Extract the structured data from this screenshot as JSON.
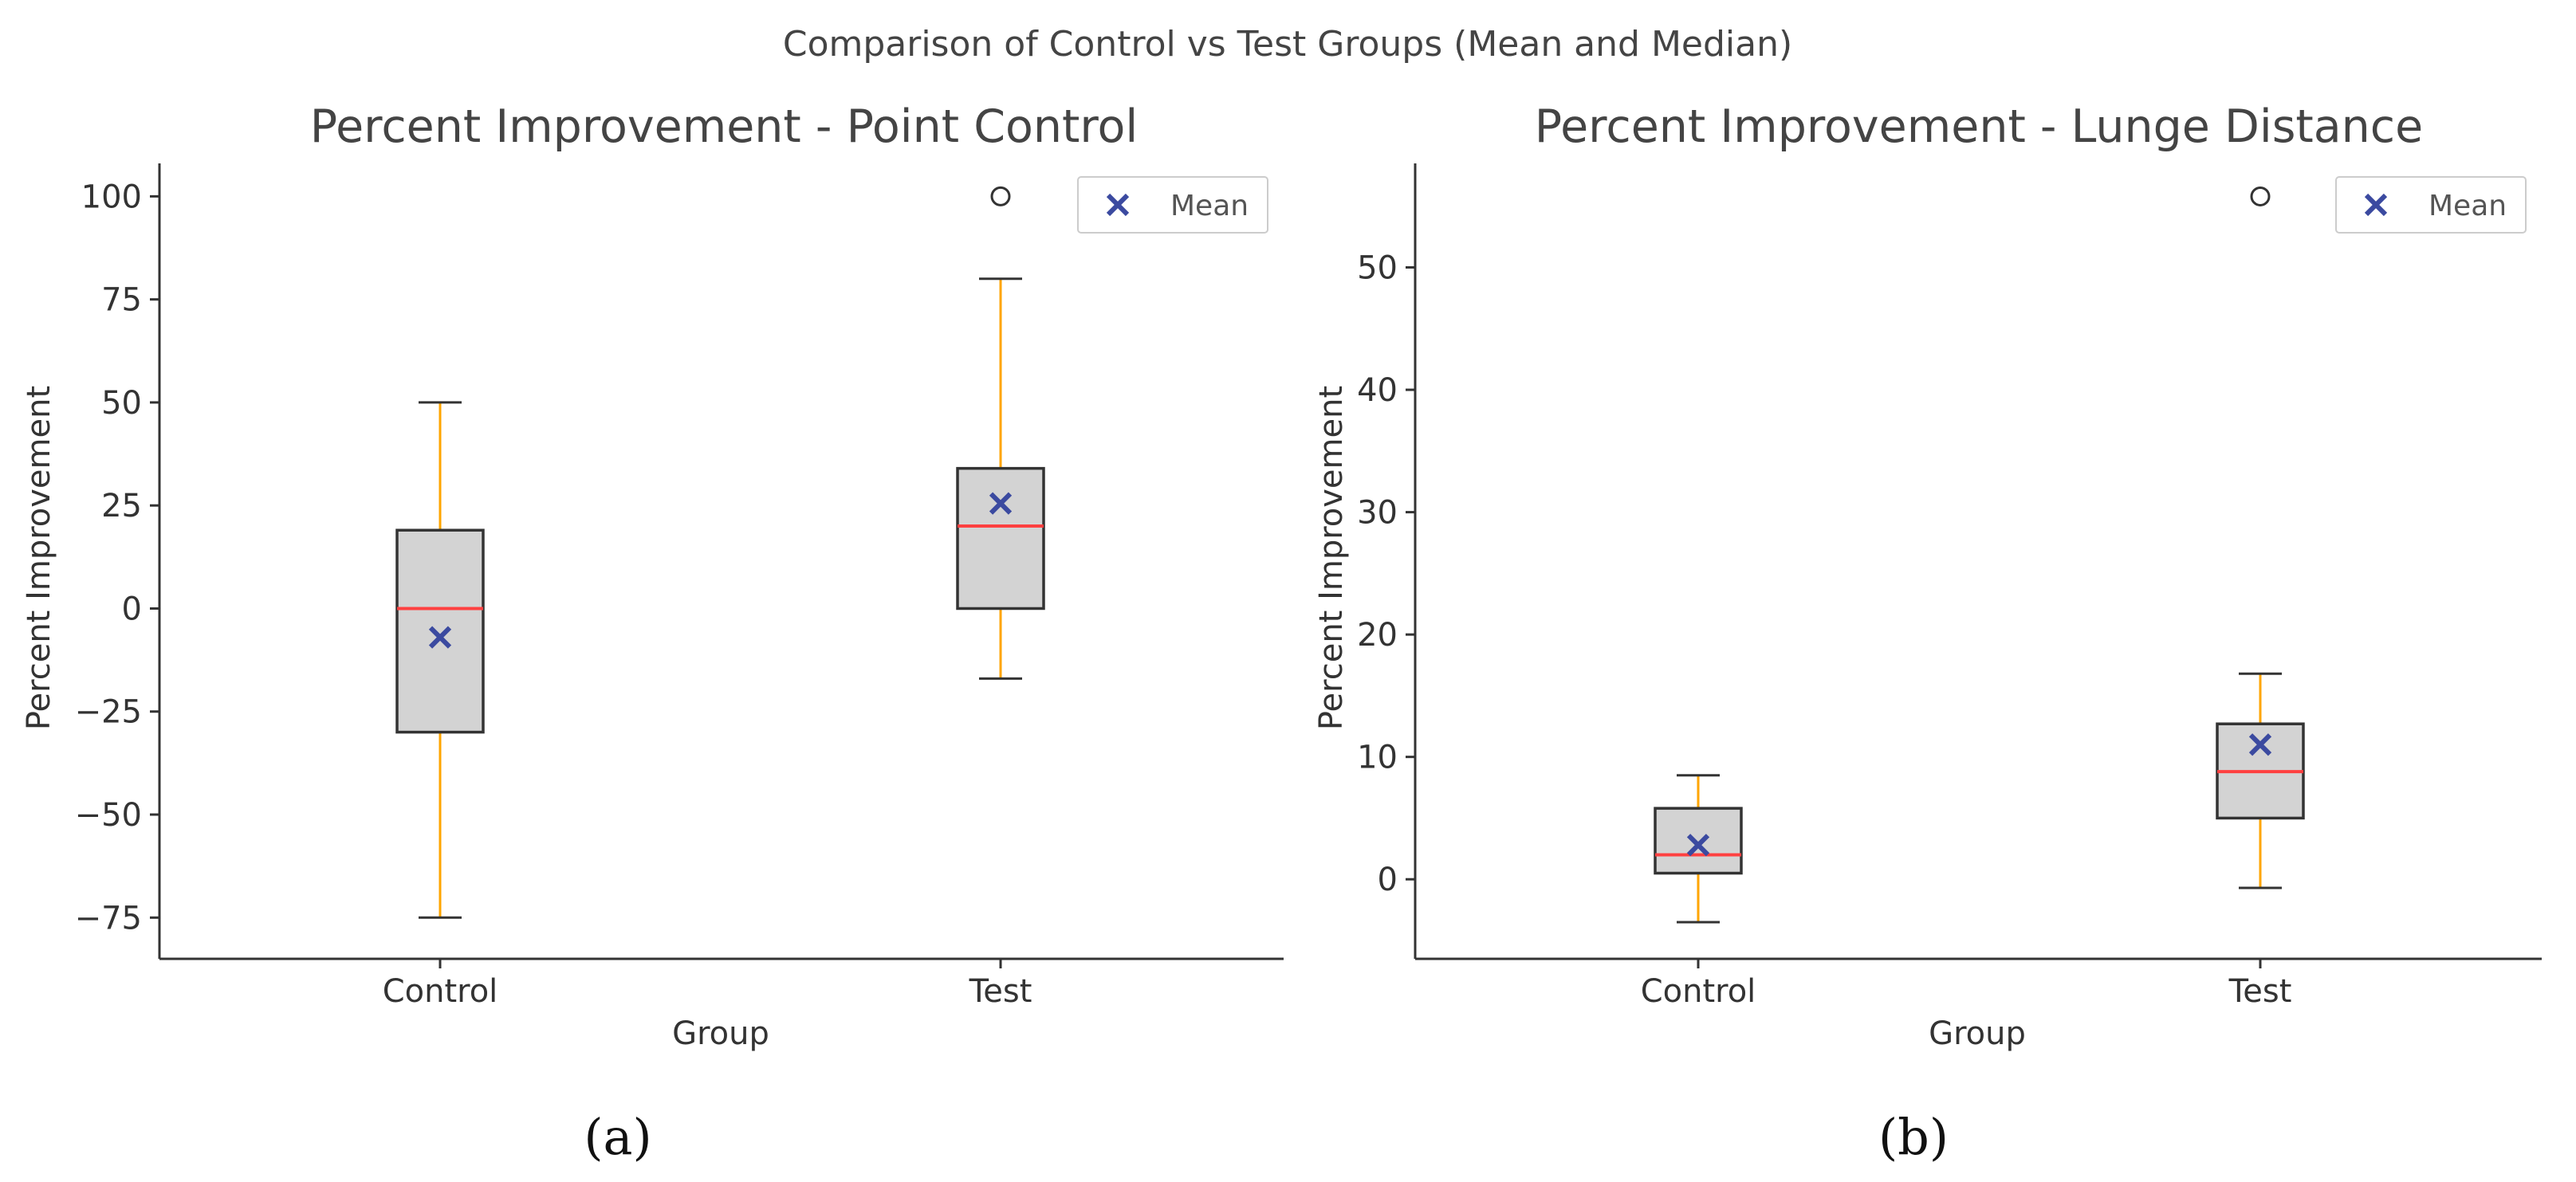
{
  "figure": {
    "suptitle": "Comparison of Control vs Test Groups (Mean and Median)",
    "colors": {
      "box_fill": "#d3d3d3",
      "box_edge": "#333333",
      "whisker": "#ffa500",
      "median": "#ff4040",
      "mean_marker": "#3b4aa0",
      "axis": "#333333"
    }
  },
  "chart_data": [
    {
      "type": "box",
      "panel_label": "(a)",
      "title": "Percent Improvement - Point Control",
      "xlabel": "Group",
      "ylabel": "Percent Improvement",
      "categories": [
        "Control",
        "Test"
      ],
      "ylim": [
        -85,
        108
      ],
      "yticks": [
        100,
        75,
        50,
        25,
        0,
        -25,
        -50,
        -75
      ],
      "legend": {
        "label": "Mean",
        "placement": "top-right"
      },
      "boxes": [
        {
          "category": "Control",
          "whisker_low": -75,
          "q1": -30,
          "median": 0,
          "q3": 19,
          "whisker_high": 50,
          "mean": -7,
          "outliers": []
        },
        {
          "category": "Test",
          "whisker_low": -17,
          "q1": 0,
          "median": 20,
          "q3": 34,
          "whisker_high": 80,
          "mean": 25.5,
          "outliers": [
            100
          ]
        }
      ]
    },
    {
      "type": "box",
      "panel_label": "(b)",
      "title": "Percent Improvement - Lunge Distance",
      "xlabel": "Group",
      "ylabel": "Percent Improvement",
      "categories": [
        "Control",
        "Test"
      ],
      "ylim": [
        -6.5,
        58.5
      ],
      "yticks": [
        50,
        40,
        30,
        20,
        10,
        0
      ],
      "legend": {
        "label": "Mean",
        "placement": "top-right"
      },
      "boxes": [
        {
          "category": "Control",
          "whisker_low": -3.5,
          "q1": 0.5,
          "median": 2,
          "q3": 5.8,
          "whisker_high": 8.5,
          "mean": 2.8,
          "outliers": []
        },
        {
          "category": "Test",
          "whisker_low": -0.7,
          "q1": 5,
          "median": 8.8,
          "q3": 12.7,
          "whisker_high": 16.8,
          "mean": 11,
          "outliers": [
            55.8
          ]
        }
      ]
    }
  ]
}
